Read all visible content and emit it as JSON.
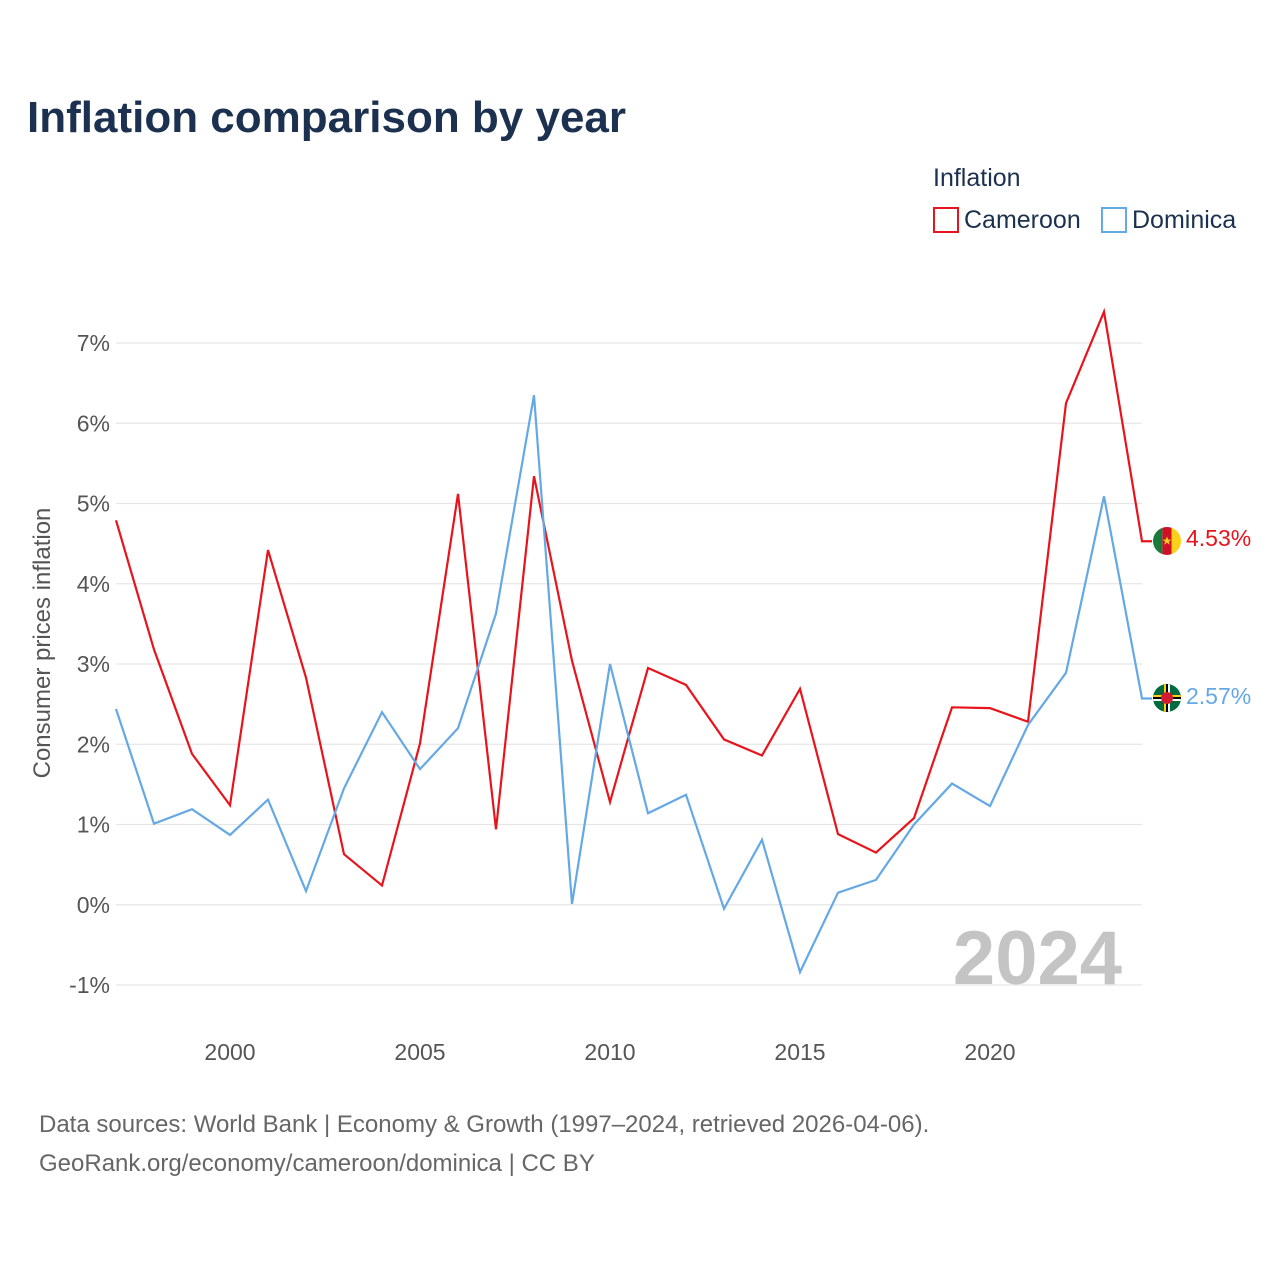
{
  "title": "Inflation comparison by year",
  "legend": {
    "title": "Inflation",
    "items": [
      {
        "label": "Cameroon",
        "color": "#e8141b"
      },
      {
        "label": "Dominica",
        "color": "#64a8e6"
      }
    ]
  },
  "watermark_year": "2024",
  "end_labels": {
    "cameroon": "4.53%",
    "dominica": "2.57%"
  },
  "flag_icons": {
    "cameroon": "cameroon-flag-icon",
    "dominica": "dominica-flag-icon"
  },
  "sources": {
    "line1": "Data sources: World Bank | Economy & Growth (1997–2024, retrieved 2026-04-06).",
    "line2": "GeoRank.org/economy/cameroon/dominica | CC BY"
  },
  "chart_data": {
    "type": "line",
    "title": "Inflation comparison by year",
    "xlabel": "",
    "ylabel": "Consumer prices inflation",
    "xlim": [
      1997,
      2024
    ],
    "ylim": [
      -1,
      7
    ],
    "x_ticks": [
      2000,
      2005,
      2010,
      2015,
      2020
    ],
    "x_tick_labels": [
      "2000",
      "2005",
      "2010",
      "2015",
      "2020"
    ],
    "y_ticks": [
      -1,
      0,
      1,
      2,
      3,
      4,
      5,
      6,
      7
    ],
    "y_tick_labels": [
      "-1%",
      "0%",
      "1%",
      "2%",
      "3%",
      "4%",
      "5%",
      "6%",
      "7%"
    ],
    "grid": true,
    "legend_position": "top-right",
    "x": [
      1997,
      1998,
      1999,
      2000,
      2001,
      2002,
      2003,
      2004,
      2005,
      2006,
      2007,
      2008,
      2009,
      2010,
      2011,
      2012,
      2013,
      2014,
      2015,
      2016,
      2017,
      2018,
      2019,
      2020,
      2021,
      2022,
      2023,
      2024
    ],
    "series": [
      {
        "name": "Cameroon",
        "color": "#e8141b",
        "values": [
          4.79,
          3.18,
          1.88,
          1.24,
          4.42,
          2.83,
          0.63,
          0.24,
          2.01,
          5.12,
          0.94,
          5.34,
          3.04,
          1.28,
          2.95,
          2.74,
          2.06,
          1.86,
          2.69,
          0.88,
          0.65,
          1.08,
          2.46,
          2.45,
          2.28,
          6.25,
          7.39,
          4.53
        ]
      },
      {
        "name": "Dominica",
        "color": "#64a8e6",
        "values": [
          2.44,
          1.01,
          1.19,
          0.87,
          1.31,
          0.17,
          1.45,
          2.4,
          1.69,
          2.2,
          3.63,
          6.35,
          0.01,
          3.0,
          1.14,
          1.37,
          -0.05,
          0.81,
          -0.84,
          0.15,
          0.31,
          1.0,
          1.51,
          1.23,
          2.24,
          2.89,
          5.09,
          2.57
        ]
      }
    ]
  }
}
